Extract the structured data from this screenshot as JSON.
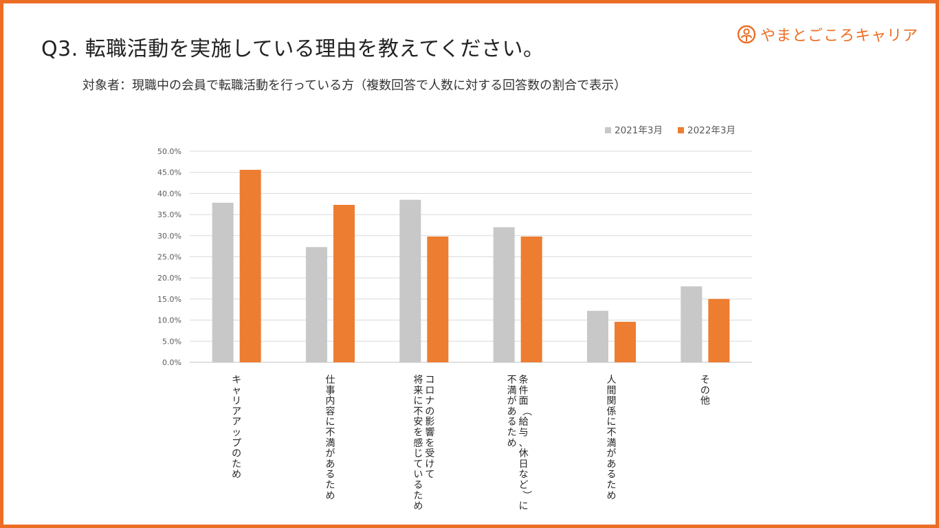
{
  "page": {
    "title": "Q3. 転職活動を実施している理由を教えてください。",
    "subtitle": "対象者：現職中の会員で転職活動を行っている方（複数回答で人数に対する回答数の割合で表示）",
    "logo_text": "やまとごころキャリア",
    "logo_icon": "yamatogokoro-logo-icon"
  },
  "colors": {
    "accent": "#ec6d25",
    "series_2021": "#c8c8c8",
    "series_2022": "#ed7d31"
  },
  "chart_data": {
    "type": "bar",
    "title": "",
    "xlabel": "",
    "ylabel": "",
    "ylim": [
      0,
      50
    ],
    "yticks": [
      "0.0%",
      "5.0%",
      "10.0%",
      "15.0%",
      "20.0%",
      "25.0%",
      "30.0%",
      "35.0%",
      "40.0%",
      "45.0%",
      "50.0%"
    ],
    "legend_position": "top-right",
    "grid": true,
    "categories": [
      [
        "キャリアアップのため"
      ],
      [
        "仕事内容に不満があるため"
      ],
      [
        "コロナの影響を受けて",
        "将来に不安を感じているため"
      ],
      [
        "条件面（給与、休日など）に",
        "不満があるため"
      ],
      [
        "人間関係に不満があるため"
      ],
      [
        "その他"
      ]
    ],
    "series": [
      {
        "name": "2021年3月",
        "color": "#c8c8c8",
        "values": [
          37.8,
          27.3,
          38.5,
          32.0,
          12.2,
          18.0
        ]
      },
      {
        "name": "2022年3月",
        "color": "#ed7d31",
        "values": [
          45.6,
          37.3,
          29.8,
          29.8,
          9.6,
          15.0
        ]
      }
    ]
  }
}
